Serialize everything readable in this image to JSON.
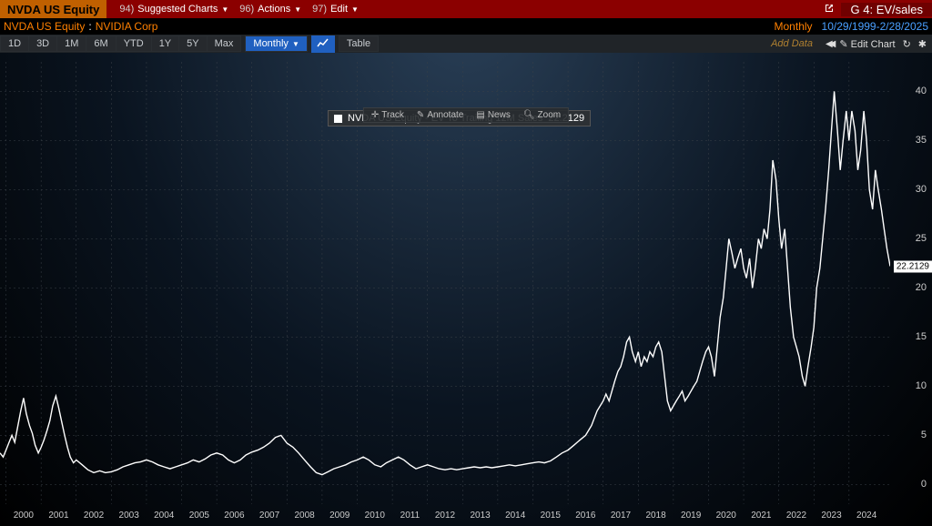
{
  "topbar": {
    "ticker": "NVDA US Equity",
    "menus": [
      {
        "num": "94)",
        "label": "Suggested Charts"
      },
      {
        "num": "96)",
        "label": "Actions"
      },
      {
        "num": "97)",
        "label": "Edit"
      }
    ],
    "metric_prefix": "G 4:",
    "metric": "EV/sales"
  },
  "subbar": {
    "ticker": "NVDA US Equity",
    "name": "NVIDIA Corp",
    "period": "Monthly",
    "range": "10/29/1999-2/28/2025"
  },
  "toolbar": {
    "ranges": [
      "1D",
      "3D",
      "1M",
      "6M",
      "YTD",
      "1Y",
      "5Y",
      "Max"
    ],
    "period": "Monthly",
    "view": "Table",
    "add_data": "Add Data",
    "edit_chart": "Edit Chart"
  },
  "mini": {
    "track": "Track",
    "annotate": "Annotate",
    "news": "News",
    "zoom": "Zoom"
  },
  "legend": {
    "label": "NVDA US Equity - EV To Trailing 12M Sales",
    "value": "22.2129",
    "top_pct": 11
  },
  "chart": {
    "type": "line",
    "ylim": [
      -2,
      43
    ],
    "yticks": [
      0,
      5,
      10,
      15,
      20,
      25,
      30,
      35,
      40
    ],
    "current_value": 22.2129,
    "series_color": "#ffffff",
    "grid_color": "#3a4048",
    "background_gradient": [
      "#2a4058",
      "#0a1420",
      "#000000"
    ],
    "x_years": [
      2000,
      2001,
      2002,
      2003,
      2004,
      2005,
      2006,
      2007,
      2008,
      2009,
      2010,
      2011,
      2012,
      2013,
      2014,
      2015,
      2016,
      2017,
      2018,
      2019,
      2020,
      2021,
      2022,
      2023,
      2024
    ],
    "t_start": 1999.83,
    "t_end": 2025.17,
    "data": [
      [
        1999.83,
        3.2
      ],
      [
        1999.92,
        2.8
      ],
      [
        2000.0,
        3.5
      ],
      [
        2000.08,
        4.2
      ],
      [
        2000.17,
        5.0
      ],
      [
        2000.25,
        4.3
      ],
      [
        2000.33,
        5.8
      ],
      [
        2000.42,
        7.5
      ],
      [
        2000.5,
        8.8
      ],
      [
        2000.58,
        7.2
      ],
      [
        2000.67,
        6.0
      ],
      [
        2000.75,
        5.2
      ],
      [
        2000.83,
        4.0
      ],
      [
        2000.92,
        3.2
      ],
      [
        2001.0,
        3.8
      ],
      [
        2001.08,
        4.5
      ],
      [
        2001.17,
        5.5
      ],
      [
        2001.25,
        6.5
      ],
      [
        2001.33,
        8.0
      ],
      [
        2001.42,
        9.0
      ],
      [
        2001.5,
        7.8
      ],
      [
        2001.58,
        6.5
      ],
      [
        2001.67,
        5.0
      ],
      [
        2001.75,
        3.8
      ],
      [
        2001.83,
        2.8
      ],
      [
        2001.92,
        2.2
      ],
      [
        2002.0,
        2.5
      ],
      [
        2002.17,
        2.0
      ],
      [
        2002.33,
        1.5
      ],
      [
        2002.5,
        1.2
      ],
      [
        2002.67,
        1.4
      ],
      [
        2002.83,
        1.2
      ],
      [
        2003.0,
        1.3
      ],
      [
        2003.17,
        1.5
      ],
      [
        2003.33,
        1.8
      ],
      [
        2003.5,
        2.0
      ],
      [
        2003.67,
        2.2
      ],
      [
        2003.83,
        2.3
      ],
      [
        2004.0,
        2.5
      ],
      [
        2004.17,
        2.3
      ],
      [
        2004.33,
        2.0
      ],
      [
        2004.5,
        1.8
      ],
      [
        2004.67,
        1.6
      ],
      [
        2004.83,
        1.8
      ],
      [
        2005.0,
        2.0
      ],
      [
        2005.17,
        2.2
      ],
      [
        2005.33,
        2.5
      ],
      [
        2005.5,
        2.3
      ],
      [
        2005.67,
        2.6
      ],
      [
        2005.83,
        3.0
      ],
      [
        2006.0,
        3.2
      ],
      [
        2006.17,
        3.0
      ],
      [
        2006.33,
        2.5
      ],
      [
        2006.5,
        2.2
      ],
      [
        2006.67,
        2.5
      ],
      [
        2006.83,
        3.0
      ],
      [
        2007.0,
        3.3
      ],
      [
        2007.17,
        3.5
      ],
      [
        2007.33,
        3.8
      ],
      [
        2007.5,
        4.2
      ],
      [
        2007.67,
        4.8
      ],
      [
        2007.83,
        5.0
      ],
      [
        2008.0,
        4.2
      ],
      [
        2008.17,
        3.8
      ],
      [
        2008.33,
        3.2
      ],
      [
        2008.5,
        2.5
      ],
      [
        2008.67,
        1.8
      ],
      [
        2008.83,
        1.2
      ],
      [
        2009.0,
        1.0
      ],
      [
        2009.17,
        1.3
      ],
      [
        2009.33,
        1.6
      ],
      [
        2009.5,
        1.8
      ],
      [
        2009.67,
        2.0
      ],
      [
        2009.83,
        2.3
      ],
      [
        2010.0,
        2.5
      ],
      [
        2010.17,
        2.8
      ],
      [
        2010.33,
        2.5
      ],
      [
        2010.5,
        2.0
      ],
      [
        2010.67,
        1.8
      ],
      [
        2010.83,
        2.2
      ],
      [
        2011.0,
        2.5
      ],
      [
        2011.17,
        2.8
      ],
      [
        2011.33,
        2.5
      ],
      [
        2011.5,
        2.0
      ],
      [
        2011.67,
        1.6
      ],
      [
        2011.83,
        1.8
      ],
      [
        2012.0,
        2.0
      ],
      [
        2012.17,
        1.8
      ],
      [
        2012.33,
        1.6
      ],
      [
        2012.5,
        1.5
      ],
      [
        2012.67,
        1.6
      ],
      [
        2012.83,
        1.5
      ],
      [
        2013.0,
        1.6
      ],
      [
        2013.17,
        1.7
      ],
      [
        2013.33,
        1.8
      ],
      [
        2013.5,
        1.7
      ],
      [
        2013.67,
        1.8
      ],
      [
        2013.83,
        1.7
      ],
      [
        2014.0,
        1.8
      ],
      [
        2014.17,
        1.9
      ],
      [
        2014.33,
        2.0
      ],
      [
        2014.5,
        1.9
      ],
      [
        2014.67,
        2.0
      ],
      [
        2014.83,
        2.1
      ],
      [
        2015.0,
        2.2
      ],
      [
        2015.17,
        2.3
      ],
      [
        2015.33,
        2.2
      ],
      [
        2015.5,
        2.4
      ],
      [
        2015.67,
        2.8
      ],
      [
        2015.83,
        3.2
      ],
      [
        2016.0,
        3.5
      ],
      [
        2016.17,
        4.0
      ],
      [
        2016.33,
        4.5
      ],
      [
        2016.5,
        5.0
      ],
      [
        2016.67,
        6.0
      ],
      [
        2016.83,
        7.5
      ],
      [
        2017.0,
        8.5
      ],
      [
        2017.08,
        9.2
      ],
      [
        2017.17,
        8.5
      ],
      [
        2017.25,
        9.5
      ],
      [
        2017.33,
        10.5
      ],
      [
        2017.42,
        11.5
      ],
      [
        2017.5,
        12.0
      ],
      [
        2017.58,
        13.0
      ],
      [
        2017.67,
        14.5
      ],
      [
        2017.75,
        15.0
      ],
      [
        2017.83,
        13.5
      ],
      [
        2017.92,
        12.5
      ],
      [
        2018.0,
        13.5
      ],
      [
        2018.08,
        12.0
      ],
      [
        2018.17,
        13.0
      ],
      [
        2018.25,
        12.5
      ],
      [
        2018.33,
        13.5
      ],
      [
        2018.42,
        13.0
      ],
      [
        2018.5,
        14.0
      ],
      [
        2018.58,
        14.5
      ],
      [
        2018.67,
        13.5
      ],
      [
        2018.75,
        11.0
      ],
      [
        2018.83,
        8.5
      ],
      [
        2018.92,
        7.5
      ],
      [
        2019.0,
        8.0
      ],
      [
        2019.08,
        8.5
      ],
      [
        2019.17,
        9.0
      ],
      [
        2019.25,
        9.5
      ],
      [
        2019.33,
        8.5
      ],
      [
        2019.42,
        9.0
      ],
      [
        2019.5,
        9.5
      ],
      [
        2019.58,
        10.0
      ],
      [
        2019.67,
        10.5
      ],
      [
        2019.75,
        11.5
      ],
      [
        2019.83,
        12.5
      ],
      [
        2019.92,
        13.5
      ],
      [
        2020.0,
        14.0
      ],
      [
        2020.08,
        13.0
      ],
      [
        2020.17,
        11.0
      ],
      [
        2020.25,
        14.0
      ],
      [
        2020.33,
        17.0
      ],
      [
        2020.42,
        19.0
      ],
      [
        2020.5,
        22.0
      ],
      [
        2020.58,
        25.0
      ],
      [
        2020.67,
        23.5
      ],
      [
        2020.75,
        22.0
      ],
      [
        2020.83,
        23.0
      ],
      [
        2020.92,
        24.0
      ],
      [
        2021.0,
        22.0
      ],
      [
        2021.08,
        21.0
      ],
      [
        2021.17,
        23.0
      ],
      [
        2021.25,
        20.0
      ],
      [
        2021.33,
        22.0
      ],
      [
        2021.42,
        25.0
      ],
      [
        2021.5,
        24.0
      ],
      [
        2021.58,
        26.0
      ],
      [
        2021.67,
        25.0
      ],
      [
        2021.75,
        28.0
      ],
      [
        2021.83,
        33.0
      ],
      [
        2021.92,
        31.0
      ],
      [
        2022.0,
        27.0
      ],
      [
        2022.08,
        24.0
      ],
      [
        2022.17,
        26.0
      ],
      [
        2022.25,
        22.0
      ],
      [
        2022.33,
        18.0
      ],
      [
        2022.42,
        15.0
      ],
      [
        2022.5,
        14.0
      ],
      [
        2022.58,
        13.0
      ],
      [
        2022.67,
        11.0
      ],
      [
        2022.75,
        10.0
      ],
      [
        2022.83,
        12.0
      ],
      [
        2022.92,
        14.0
      ],
      [
        2023.0,
        16.0
      ],
      [
        2023.08,
        20.0
      ],
      [
        2023.17,
        22.0
      ],
      [
        2023.25,
        25.0
      ],
      [
        2023.33,
        28.0
      ],
      [
        2023.42,
        32.0
      ],
      [
        2023.5,
        36.0
      ],
      [
        2023.58,
        40.0
      ],
      [
        2023.67,
        36.0
      ],
      [
        2023.75,
        32.0
      ],
      [
        2023.83,
        35.0
      ],
      [
        2023.92,
        38.0
      ],
      [
        2024.0,
        35.0
      ],
      [
        2024.08,
        38.0
      ],
      [
        2024.17,
        36.0
      ],
      [
        2024.25,
        32.0
      ],
      [
        2024.33,
        34.0
      ],
      [
        2024.42,
        38.0
      ],
      [
        2024.5,
        35.0
      ],
      [
        2024.58,
        30.0
      ],
      [
        2024.67,
        28.0
      ],
      [
        2024.75,
        32.0
      ],
      [
        2024.83,
        30.0
      ],
      [
        2024.92,
        28.0
      ],
      [
        2025.0,
        26.0
      ],
      [
        2025.08,
        24.0
      ],
      [
        2025.17,
        22.2129
      ]
    ]
  }
}
